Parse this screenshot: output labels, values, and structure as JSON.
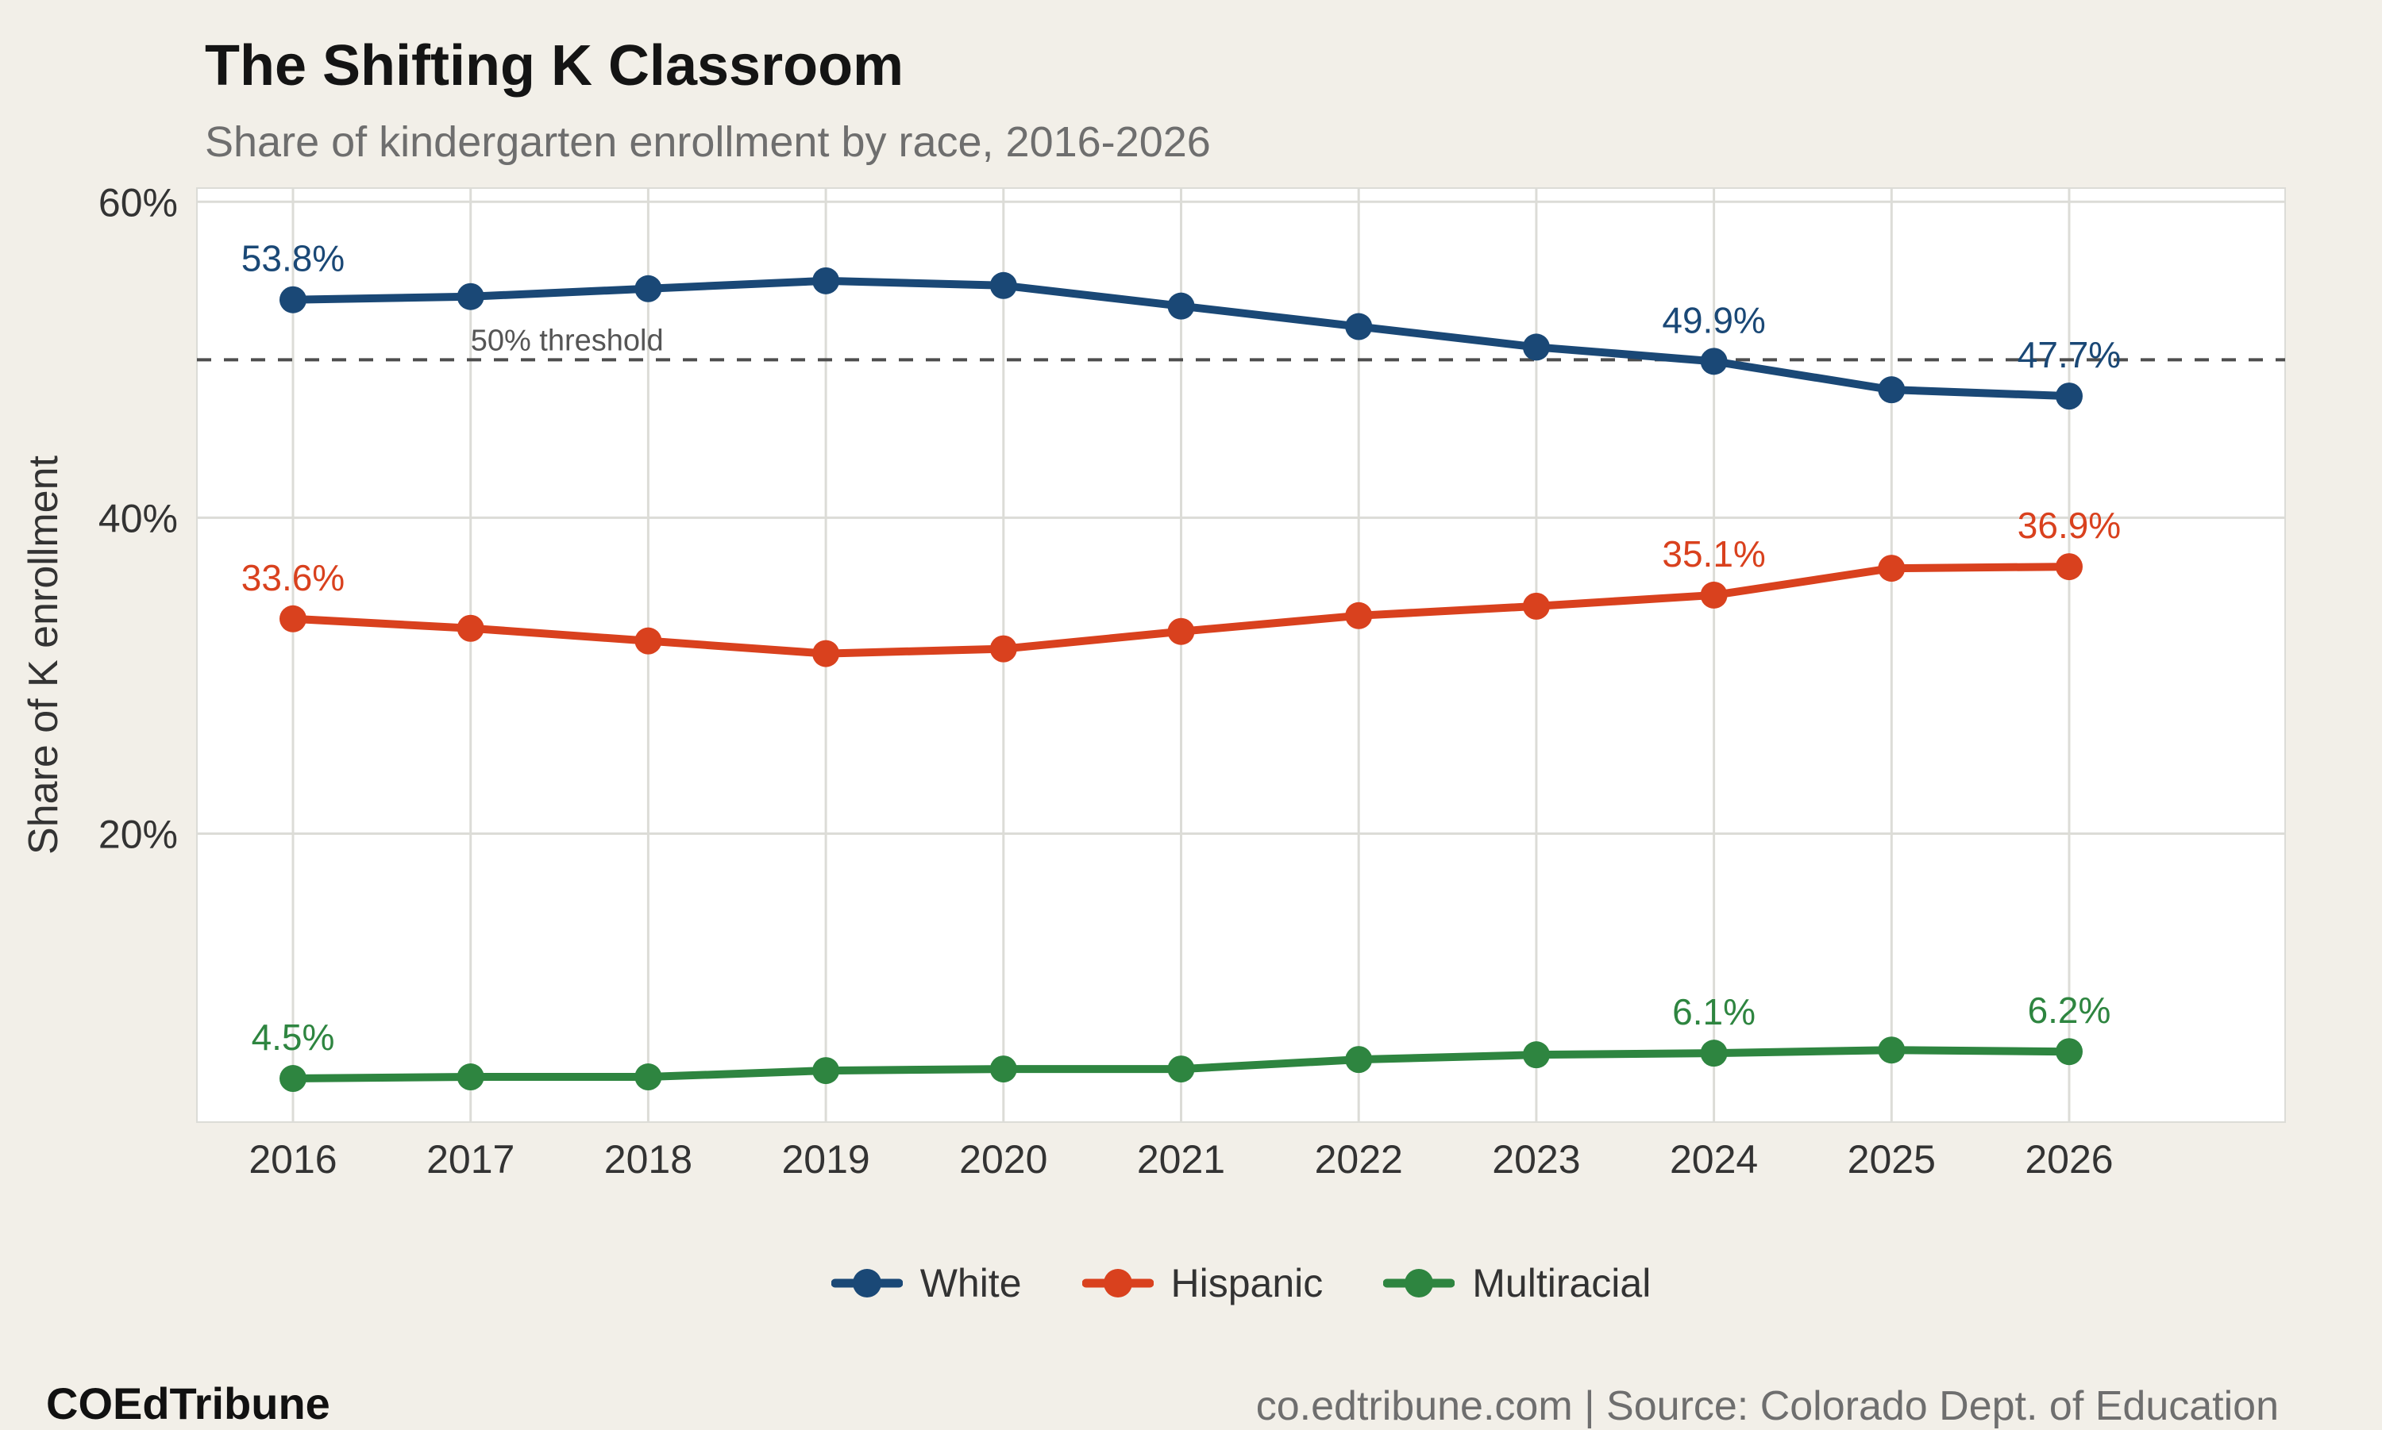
{
  "header": {
    "title": "The Shifting K Classroom",
    "subtitle": "Share of kindergarten enrollment by race, 2016-2026"
  },
  "chart_data": {
    "type": "line",
    "title": "The Shifting K Classroom",
    "subtitle": "Share of kindergarten enrollment by race, 2016-2026",
    "x": [
      2016,
      2017,
      2018,
      2019,
      2020,
      2021,
      2022,
      2023,
      2024,
      2025,
      2026
    ],
    "series": [
      {
        "name": "White",
        "color": "#1a4876",
        "values": [
          53.8,
          54.0,
          54.5,
          55.0,
          54.7,
          53.4,
          52.1,
          50.8,
          49.9,
          48.1,
          47.7
        ],
        "point_labels": [
          {
            "index": 0,
            "text": "53.8%"
          },
          {
            "index": 8,
            "text": "49.9%"
          },
          {
            "index": 10,
            "text": "47.7%"
          }
        ]
      },
      {
        "name": "Hispanic",
        "color": "#d9411e",
        "values": [
          33.6,
          33.0,
          32.2,
          31.4,
          31.7,
          32.8,
          33.8,
          34.4,
          35.1,
          36.8,
          36.9
        ],
        "point_labels": [
          {
            "index": 0,
            "text": "33.6%"
          },
          {
            "index": 8,
            "text": "35.1%"
          },
          {
            "index": 10,
            "text": "36.9%"
          }
        ]
      },
      {
        "name": "Multiracial",
        "color": "#2e8540",
        "values": [
          4.5,
          4.6,
          4.6,
          5.0,
          5.1,
          5.1,
          5.7,
          6.0,
          6.1,
          6.3,
          6.2
        ],
        "point_labels": [
          {
            "index": 0,
            "text": "4.5%"
          },
          {
            "index": 8,
            "text": "6.1%"
          },
          {
            "index": 10,
            "text": "6.2%"
          }
        ]
      }
    ],
    "ylabel": "Share of K enrollment",
    "xlabel": "",
    "yticks": [
      {
        "value": 20,
        "label": "20%"
      },
      {
        "value": 40,
        "label": "40%"
      },
      {
        "value": 60,
        "label": "60%"
      }
    ],
    "ylim": [
      1.7,
      60.9
    ],
    "threshold": {
      "value": 50,
      "label": "50% threshold"
    },
    "grid": true,
    "legend_position": "bottom"
  },
  "legend": {
    "items": [
      {
        "label": "White",
        "color": "#1a4876"
      },
      {
        "label": "Hispanic",
        "color": "#d9411e"
      },
      {
        "label": "Multiracial",
        "color": "#2e8540"
      }
    ]
  },
  "footer": {
    "brand": "COEdTribune",
    "attribution": "co.edtribune.com | Source: Colorado Dept. of Education"
  },
  "colors": {
    "background": "#f2efe8",
    "plot_background": "#ffffff",
    "grid": "#dcdcd7",
    "threshold_line": "#4d4d4d",
    "threshold_label": "#555555",
    "tick": "#333333",
    "title": "#141414",
    "subtitle": "#6e6e6e"
  }
}
